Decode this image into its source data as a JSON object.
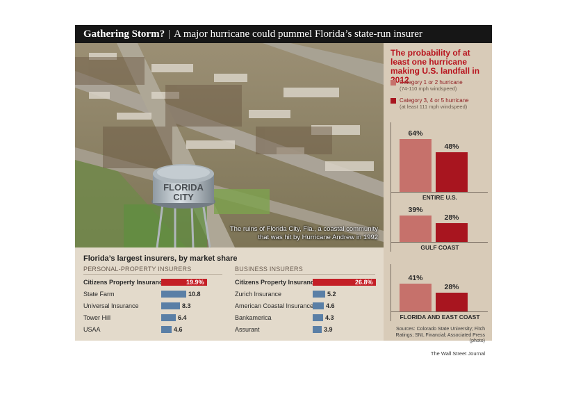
{
  "header": {
    "title_bold": "Gathering Storm?",
    "separator": "|",
    "title_rest": "A major hurricane could pummel Florida’s state-run insurer"
  },
  "photo": {
    "tower_line1": "FLORIDA",
    "tower_line2": "CITY",
    "caption": "The ruins of Florida City, Fla., a coastal community that was hit by Hurricane Andrew in 1992"
  },
  "colors": {
    "cat12": "#c6716b",
    "cat345": "#a8151f",
    "citizens_bar": "#c41f26",
    "other_bar": "#5a7fa6",
    "panel_bg": "#d8cbb8"
  },
  "chart_data": [
    {
      "type": "bar",
      "title": "The probability of at least one hurricane making U.S. landfall in 2012",
      "unit": "%",
      "categories": [
        "ENTIRE U.S.",
        "GULF COAST",
        "FLORIDA AND EAST COAST"
      ],
      "series": [
        {
          "name": "Category 1 or 2 hurricane",
          "note": "(74-110 mph windspeed)",
          "values": [
            64,
            39,
            41
          ]
        },
        {
          "name": "Category 3, 4 or 5 hurricane",
          "note": "(at least 111 mph windspeed)",
          "values": [
            48,
            28,
            28
          ]
        }
      ],
      "ylim": [
        0,
        70
      ]
    },
    {
      "type": "bar",
      "orientation": "horizontal",
      "title": "Florida’s largest insurers, by market share",
      "groups": [
        {
          "heading": "PERSONAL-PROPERTY INSURERS",
          "categories": [
            "Citizens Property Insurance",
            "State Farm",
            "Universal Insurance",
            "Tower Hill",
            "USAA"
          ],
          "values": [
            19.9,
            10.8,
            8.3,
            6.4,
            4.6
          ],
          "labels": [
            "19.9%",
            "10.8",
            "8.3",
            "6.4",
            "4.6"
          ]
        },
        {
          "heading": "BUSINESS INSURERS",
          "categories": [
            "Citizens Property Insurance",
            "Zurich Insurance",
            "American Coastal Insurance",
            "Bankamerica",
            "Assurant"
          ],
          "values": [
            26.8,
            5.2,
            4.6,
            4.3,
            3.9
          ],
          "labels": [
            "26.8%",
            "5.2",
            "4.6",
            "4.3",
            "3.9"
          ]
        }
      ]
    }
  ],
  "footer": {
    "sources": "Sources: Colorado State University; Fitch Ratings; SNL Financial; Associated Press (photo)",
    "credit": "The Wall Street Journal"
  }
}
